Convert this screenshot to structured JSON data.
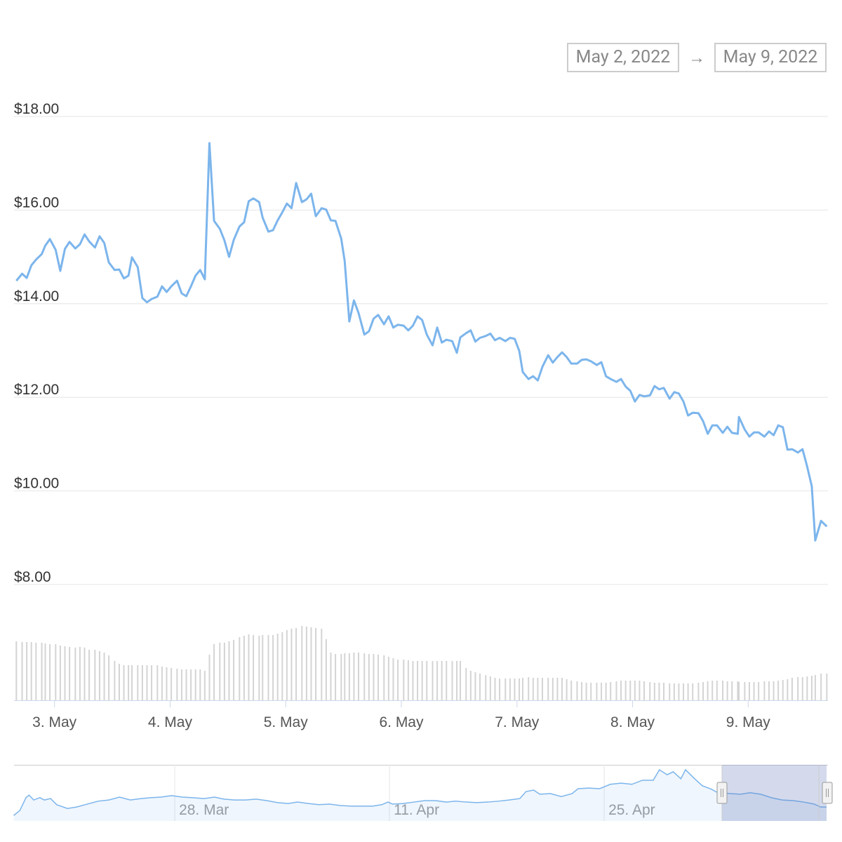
{
  "chart_data": [
    {
      "type": "line",
      "range_from": "May 2, 2022",
      "range_separator": "→",
      "range_to": "May 9, 2022",
      "x": [
        2.67,
        2.72,
        2.76,
        2.8,
        2.84,
        2.89,
        2.92,
        2.96,
        3.01,
        3.05,
        3.09,
        3.13,
        3.18,
        3.22,
        3.26,
        3.3,
        3.35,
        3.39,
        3.43,
        3.47,
        3.52,
        3.56,
        3.6,
        3.64,
        3.67,
        3.72,
        3.76,
        3.8,
        3.84,
        3.89,
        3.93,
        3.97,
        4.01,
        4.06,
        4.1,
        4.14,
        4.18,
        4.22,
        4.26,
        4.3,
        4.34,
        4.38,
        4.43,
        4.47,
        4.51,
        4.55,
        4.6,
        4.64,
        4.68,
        4.72,
        4.77,
        4.8,
        4.85,
        4.89,
        4.93,
        4.97,
        5.01,
        5.05,
        5.09,
        5.14,
        5.18,
        5.22,
        5.26,
        5.31,
        5.35,
        5.39,
        5.43,
        5.48,
        5.51,
        5.55,
        5.59,
        5.63,
        5.68,
        5.72,
        5.76,
        5.8,
        5.85,
        5.89,
        5.93,
        5.97,
        6.02,
        6.06,
        6.1,
        6.14,
        6.18,
        6.22,
        6.27,
        6.31,
        6.35,
        6.39,
        6.44,
        6.48,
        6.51,
        6.56,
        6.6,
        6.64,
        6.68,
        6.73,
        6.77,
        6.81,
        6.85,
        6.9,
        6.94,
        6.98,
        7.02,
        7.05,
        7.1,
        7.14,
        7.18,
        7.22,
        7.27,
        7.31,
        7.35,
        7.39,
        7.43,
        7.47,
        7.52,
        7.56,
        7.6,
        7.64,
        7.69,
        7.73,
        7.77,
        7.81,
        7.86,
        7.9,
        7.94,
        7.98,
        8.02,
        8.06,
        8.1,
        8.15,
        8.19,
        8.23,
        8.27,
        8.32,
        8.36,
        8.4,
        8.44,
        8.48,
        8.52,
        8.57,
        8.61,
        8.65,
        8.69,
        8.73,
        8.78,
        8.82,
        8.86,
        8.91,
        8.92,
        8.97,
        9.01,
        9.05,
        9.09,
        9.14,
        9.18,
        9.22,
        9.26,
        9.3,
        9.34,
        9.38,
        9.43,
        9.47,
        9.51,
        9.55,
        9.58,
        9.63,
        9.68
      ],
      "series": [
        {
          "type": "line",
          "color": "#7cb5ec",
          "values": [
            14.49,
            14.64,
            14.55,
            14.82,
            14.94,
            15.06,
            15.24,
            15.38,
            15.15,
            14.7,
            15.17,
            15.32,
            15.18,
            15.27,
            15.48,
            15.33,
            15.2,
            15.44,
            15.3,
            14.88,
            14.72,
            14.73,
            14.54,
            14.6,
            14.99,
            14.78,
            14.12,
            14.03,
            14.1,
            14.15,
            14.37,
            14.25,
            14.37,
            14.49,
            14.22,
            14.16,
            14.37,
            14.6,
            14.72,
            14.52,
            17.43,
            15.77,
            15.6,
            15.35,
            15.0,
            15.36,
            15.65,
            15.74,
            16.19,
            16.25,
            16.17,
            15.84,
            15.54,
            15.57,
            15.78,
            15.95,
            16.14,
            16.04,
            16.58,
            16.17,
            16.23,
            16.35,
            15.87,
            16.04,
            16.01,
            15.78,
            15.77,
            15.39,
            14.91,
            13.62,
            14.07,
            13.8,
            13.34,
            13.41,
            13.68,
            13.76,
            13.56,
            13.73,
            13.49,
            13.55,
            13.53,
            13.43,
            13.53,
            13.73,
            13.65,
            13.34,
            13.11,
            13.49,
            13.17,
            13.23,
            13.2,
            12.95,
            13.28,
            13.37,
            13.43,
            13.19,
            13.27,
            13.31,
            13.36,
            13.22,
            13.27,
            13.2,
            13.27,
            13.25,
            12.99,
            12.54,
            12.39,
            12.45,
            12.36,
            12.65,
            12.9,
            12.74,
            12.86,
            12.96,
            12.86,
            12.72,
            12.72,
            12.8,
            12.81,
            12.77,
            12.69,
            12.75,
            12.45,
            12.39,
            12.33,
            12.39,
            12.23,
            12.14,
            11.91,
            12.05,
            12.02,
            12.04,
            12.24,
            12.17,
            12.2,
            11.97,
            12.11,
            12.08,
            11.91,
            11.61,
            11.67,
            11.66,
            11.49,
            11.22,
            11.4,
            11.4,
            11.24,
            11.37,
            11.24,
            11.22,
            11.58,
            11.31,
            11.16,
            11.25,
            11.25,
            11.16,
            11.27,
            11.19,
            11.4,
            11.36,
            10.88,
            10.89,
            10.82,
            10.89,
            10.52,
            10.1,
            8.94,
            9.36,
            9.24
          ]
        },
        {
          "type": "column",
          "axis": "y2",
          "color": "#d4d4d4",
          "values": [
            84,
            83,
            83,
            83,
            82,
            82,
            81,
            80,
            80,
            78,
            77,
            76,
            75,
            76,
            75,
            72,
            72,
            70,
            68,
            64,
            56,
            52,
            50,
            50,
            50,
            50,
            50,
            50,
            50,
            50,
            48,
            47,
            46,
            45,
            44,
            44,
            44,
            44,
            44,
            42,
            65,
            80,
            82,
            82,
            84,
            86,
            90,
            92,
            94,
            93,
            92,
            93,
            93,
            93,
            95,
            97,
            100,
            102,
            103,
            106,
            105,
            104,
            103,
            102,
            87,
            68,
            66,
            66,
            67,
            67,
            68,
            68,
            67,
            66,
            66,
            65,
            64,
            62,
            60,
            58,
            58,
            57,
            56,
            56,
            56,
            56,
            56,
            56,
            56,
            56,
            56,
            56,
            56,
            46,
            42,
            40,
            38,
            36,
            34,
            32,
            31,
            31,
            31,
            31,
            31,
            32,
            33,
            32,
            32,
            32,
            32,
            32,
            32,
            32,
            30,
            28,
            27,
            26,
            25,
            25,
            25,
            25,
            25,
            26,
            27,
            28,
            28,
            28,
            28,
            28,
            27,
            26,
            25,
            25,
            25,
            24,
            24,
            24,
            24,
            24,
            24,
            25,
            26,
            27,
            28,
            28,
            28,
            27,
            27,
            27,
            26,
            26,
            26,
            26,
            26,
            27,
            27,
            27,
            28,
            29,
            30,
            32,
            33,
            33,
            34,
            35,
            36,
            38,
            38
          ]
        }
      ],
      "xlim": [
        2.65,
        9.69
      ],
      "xticks": [
        {
          "value": 3,
          "label": "3. May"
        },
        {
          "value": 4,
          "label": "4. May"
        },
        {
          "value": 5,
          "label": "5. May"
        },
        {
          "value": 6,
          "label": "6. May"
        },
        {
          "value": 7,
          "label": "7. May"
        },
        {
          "value": 8,
          "label": "8. May"
        },
        {
          "value": 9,
          "label": "9. May"
        }
      ],
      "ylim": [
        8,
        18
      ],
      "yticks": [
        {
          "value": 8,
          "label": "$8.00"
        },
        {
          "value": 10,
          "label": "$10.00"
        },
        {
          "value": 12,
          "label": "$12.00"
        },
        {
          "value": 14,
          "label": "$14.00"
        },
        {
          "value": 16,
          "label": "$16.00"
        },
        {
          "value": 18,
          "label": "$18.00"
        }
      ],
      "y2lim": [
        0,
        150
      ],
      "grid": true
    },
    {
      "type": "area",
      "color": "#7cb5ec",
      "x": [
        76.5,
        76.9,
        77.3,
        77.5,
        77.8,
        78.2,
        78.5,
        78.9,
        79.3,
        80.0,
        80.6,
        81.3,
        82.0,
        82.7,
        83.4,
        84.1,
        84.8,
        85.4,
        86.1,
        86.8,
        87.5,
        88.2,
        88.9,
        89.6,
        90.2,
        90.9,
        91.6,
        92.3,
        93.0,
        93.7,
        94.4,
        95.0,
        95.7,
        96.4,
        97.1,
        97.8,
        98.5,
        99.2,
        99.9,
        100.5,
        100.9,
        101.2,
        101.9,
        102.6,
        103.3,
        104.0,
        104.7,
        105.3,
        106.0,
        106.7,
        107.4,
        108.1,
        108.8,
        109.5,
        109.9,
        110.4,
        110.8,
        111.5,
        112.2,
        112.9,
        113.3,
        114.0,
        114.7,
        115.4,
        116.1,
        116.8,
        117.5,
        118.2,
        118.6,
        119.1,
        119.5,
        120.0,
        120.3,
        120.9,
        121.4,
        122.0,
        122.4,
        122.7,
        123.2,
        123.9,
        124.5,
        125.2,
        125.9,
        126.6,
        127.3,
        128.0,
        128.7,
        129.1,
        129.5
      ],
      "values": [
        6.3,
        8.0,
        12.4,
        13.3,
        11.6,
        12.4,
        11.6,
        12.1,
        10.0,
        8.7,
        9.2,
        10.2,
        11.2,
        11.6,
        12.6,
        11.6,
        12.1,
        12.4,
        12.6,
        13.1,
        12.6,
        12.4,
        12.1,
        12.6,
        11.9,
        11.6,
        11.6,
        11.9,
        11.4,
        10.7,
        10.4,
        10.9,
        10.4,
        10.0,
        10.2,
        9.7,
        9.5,
        9.5,
        9.5,
        10.0,
        10.9,
        10.2,
        10.4,
        10.9,
        11.4,
        11.4,
        10.9,
        11.2,
        10.9,
        10.7,
        10.9,
        11.2,
        11.6,
        12.1,
        14.5,
        15.0,
        13.6,
        13.8,
        12.8,
        13.8,
        15.5,
        15.7,
        15.5,
        17.0,
        17.4,
        17.0,
        18.4,
        18.4,
        22.0,
        20.3,
        21.3,
        18.9,
        22.0,
        18.9,
        16.5,
        15.3,
        14.1,
        14.1,
        13.8,
        13.6,
        14.1,
        13.6,
        12.4,
        11.6,
        11.4,
        10.9,
        10.2,
        9.2,
        9.2
      ],
      "xlim": [
        76.52,
        129.59
      ],
      "xticks": [
        {
          "value": 87,
          "label": "28. Mar"
        },
        {
          "value": 101,
          "label": "11. Apr"
        },
        {
          "value": 115,
          "label": "25. Apr"
        }
      ],
      "ylim": [
        4.4,
        23.7
      ],
      "grid": true
    }
  ]
}
